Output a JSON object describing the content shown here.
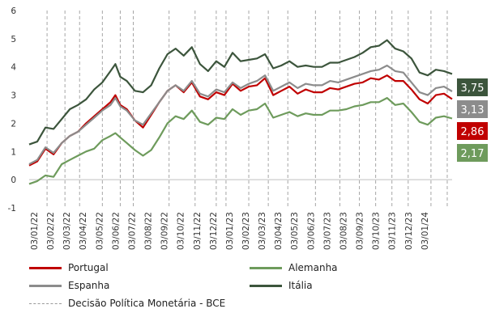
{
  "chart_data": {
    "type": "line",
    "title": "",
    "xlabel": "",
    "ylabel": "",
    "ylim": [
      -1,
      6
    ],
    "yticks": [
      -1,
      0,
      1,
      2,
      3,
      4,
      5,
      6
    ],
    "grid": false,
    "legend_position": "bottom",
    "x_tick_labels": [
      "03/01/22",
      "03/02/22",
      "03/03/22",
      "03/04/22",
      "03/05/22",
      "03/06/22",
      "03/07/22",
      "03/08/22",
      "03/09/22",
      "03/10/22",
      "03/11/22",
      "03/12/22",
      "03/01/23",
      "03/02/23",
      "03/03/23",
      "03/04/23",
      "03/05/23",
      "03/06/23",
      "03/07/23",
      "03/08/23",
      "03/09/23",
      "03/10/23",
      "03/11/23",
      "03/12/23",
      "03/01/24"
    ],
    "x_range_months": [
      0,
      26
    ],
    "x_unit": "months since 03/01/22",
    "series": [
      {
        "name": "Portugal",
        "color": "#c00000",
        "end_label": "2,86",
        "x": [
          0,
          0.5,
          1,
          1.5,
          2,
          2.5,
          3,
          3.5,
          4,
          4.5,
          5,
          5.3,
          5.6,
          6,
          6.5,
          7,
          7.5,
          8,
          8.5,
          9,
          9.5,
          10,
          10.5,
          11,
          11.5,
          12,
          12.5,
          13,
          13.5,
          14,
          14.5,
          15,
          15.5,
          16,
          16.5,
          17,
          17.5,
          18,
          18.5,
          19,
          19.5,
          20,
          20.5,
          21,
          21.5,
          22,
          22.5,
          23,
          23.5,
          24,
          24.5,
          25,
          25.5,
          26
        ],
        "values": [
          0.5,
          0.65,
          1.1,
          0.9,
          1.3,
          1.55,
          1.7,
          2.0,
          2.25,
          2.5,
          2.75,
          3.0,
          2.65,
          2.5,
          2.1,
          1.85,
          2.3,
          2.75,
          3.15,
          3.35,
          3.1,
          3.45,
          2.95,
          2.85,
          3.1,
          3.0,
          3.4,
          3.15,
          3.3,
          3.35,
          3.6,
          3.0,
          3.15,
          3.3,
          3.05,
          3.2,
          3.1,
          3.1,
          3.25,
          3.2,
          3.3,
          3.4,
          3.45,
          3.6,
          3.55,
          3.7,
          3.5,
          3.5,
          3.2,
          2.85,
          2.7,
          3.0,
          3.05,
          2.86
        ]
      },
      {
        "name": "Alemanha",
        "color": "#6e9b5c",
        "end_label": "2,17",
        "x": [
          0,
          0.5,
          1,
          1.5,
          2,
          2.5,
          3,
          3.5,
          4,
          4.5,
          5,
          5.3,
          5.6,
          6,
          6.5,
          7,
          7.5,
          8,
          8.5,
          9,
          9.5,
          10,
          10.5,
          11,
          11.5,
          12,
          12.5,
          13,
          13.5,
          14,
          14.5,
          15,
          15.5,
          16,
          16.5,
          17,
          17.5,
          18,
          18.5,
          19,
          19.5,
          20,
          20.5,
          21,
          21.5,
          22,
          22.5,
          23,
          23.5,
          24,
          24.5,
          25,
          25.5,
          26
        ],
        "values": [
          -0.15,
          -0.05,
          0.15,
          0.1,
          0.55,
          0.7,
          0.85,
          1.0,
          1.1,
          1.4,
          1.55,
          1.65,
          1.5,
          1.3,
          1.05,
          0.85,
          1.05,
          1.5,
          2.0,
          2.25,
          2.15,
          2.45,
          2.05,
          1.95,
          2.2,
          2.15,
          2.5,
          2.3,
          2.45,
          2.5,
          2.7,
          2.2,
          2.3,
          2.4,
          2.25,
          2.35,
          2.3,
          2.3,
          2.45,
          2.45,
          2.5,
          2.6,
          2.65,
          2.75,
          2.75,
          2.9,
          2.65,
          2.7,
          2.4,
          2.05,
          1.95,
          2.2,
          2.25,
          2.17
        ]
      },
      {
        "name": "Espanha",
        "color": "#8c8c8c",
        "end_label": "3,13",
        "x": [
          0,
          0.5,
          1,
          1.5,
          2,
          2.5,
          3,
          3.5,
          4,
          4.5,
          5,
          5.3,
          5.6,
          6,
          6.5,
          7,
          7.5,
          8,
          8.5,
          9,
          9.5,
          10,
          10.5,
          11,
          11.5,
          12,
          12.5,
          13,
          13.5,
          14,
          14.5,
          15,
          15.5,
          16,
          16.5,
          17,
          17.5,
          18,
          18.5,
          19,
          19.5,
          20,
          20.5,
          21,
          21.5,
          22,
          22.5,
          23,
          23.5,
          24,
          24.5,
          25,
          25.5,
          26
        ],
        "values": [
          0.55,
          0.7,
          1.15,
          0.95,
          1.3,
          1.55,
          1.7,
          1.95,
          2.2,
          2.45,
          2.65,
          2.9,
          2.6,
          2.45,
          2.1,
          1.95,
          2.35,
          2.75,
          3.15,
          3.35,
          3.15,
          3.5,
          3.05,
          2.95,
          3.2,
          3.1,
          3.45,
          3.25,
          3.4,
          3.5,
          3.7,
          3.15,
          3.3,
          3.45,
          3.25,
          3.4,
          3.35,
          3.35,
          3.5,
          3.45,
          3.55,
          3.65,
          3.75,
          3.85,
          3.9,
          4.05,
          3.85,
          3.8,
          3.45,
          3.1,
          3.0,
          3.25,
          3.3,
          3.13
        ]
      },
      {
        "name": "Itália",
        "color": "#3c553c",
        "end_label": "3,75",
        "x": [
          0,
          0.5,
          1,
          1.5,
          2,
          2.5,
          3,
          3.5,
          4,
          4.5,
          5,
          5.3,
          5.6,
          6,
          6.5,
          7,
          7.5,
          8,
          8.5,
          9,
          9.5,
          10,
          10.5,
          11,
          11.5,
          12,
          12.5,
          13,
          13.5,
          14,
          14.5,
          15,
          15.5,
          16,
          16.5,
          17,
          17.5,
          18,
          18.5,
          19,
          19.5,
          20,
          20.5,
          21,
          21.5,
          22,
          22.5,
          23,
          23.5,
          24,
          24.5,
          25,
          25.5,
          26
        ],
        "values": [
          1.25,
          1.35,
          1.85,
          1.8,
          2.15,
          2.5,
          2.65,
          2.85,
          3.2,
          3.45,
          3.85,
          4.1,
          3.65,
          3.5,
          3.15,
          3.1,
          3.35,
          3.95,
          4.45,
          4.65,
          4.4,
          4.7,
          4.1,
          3.85,
          4.2,
          4.0,
          4.5,
          4.2,
          4.25,
          4.3,
          4.45,
          3.95,
          4.05,
          4.2,
          4.0,
          4.05,
          4.0,
          4.0,
          4.15,
          4.15,
          4.25,
          4.35,
          4.5,
          4.7,
          4.75,
          4.95,
          4.65,
          4.55,
          4.3,
          3.8,
          3.7,
          3.9,
          3.85,
          3.75
        ]
      }
    ],
    "policy_decisions_label": "Decisão Política Monetária - BCE",
    "policy_decisions_x": [
      1.1,
      2.2,
      3.1,
      4.5,
      5.6,
      6.4,
      8.6,
      10.2,
      11.5,
      12.1,
      13.5,
      14.7,
      15.9,
      17.6,
      19.1,
      20.3,
      21.3,
      22.3,
      23.3,
      24.7,
      25.7
    ]
  }
}
